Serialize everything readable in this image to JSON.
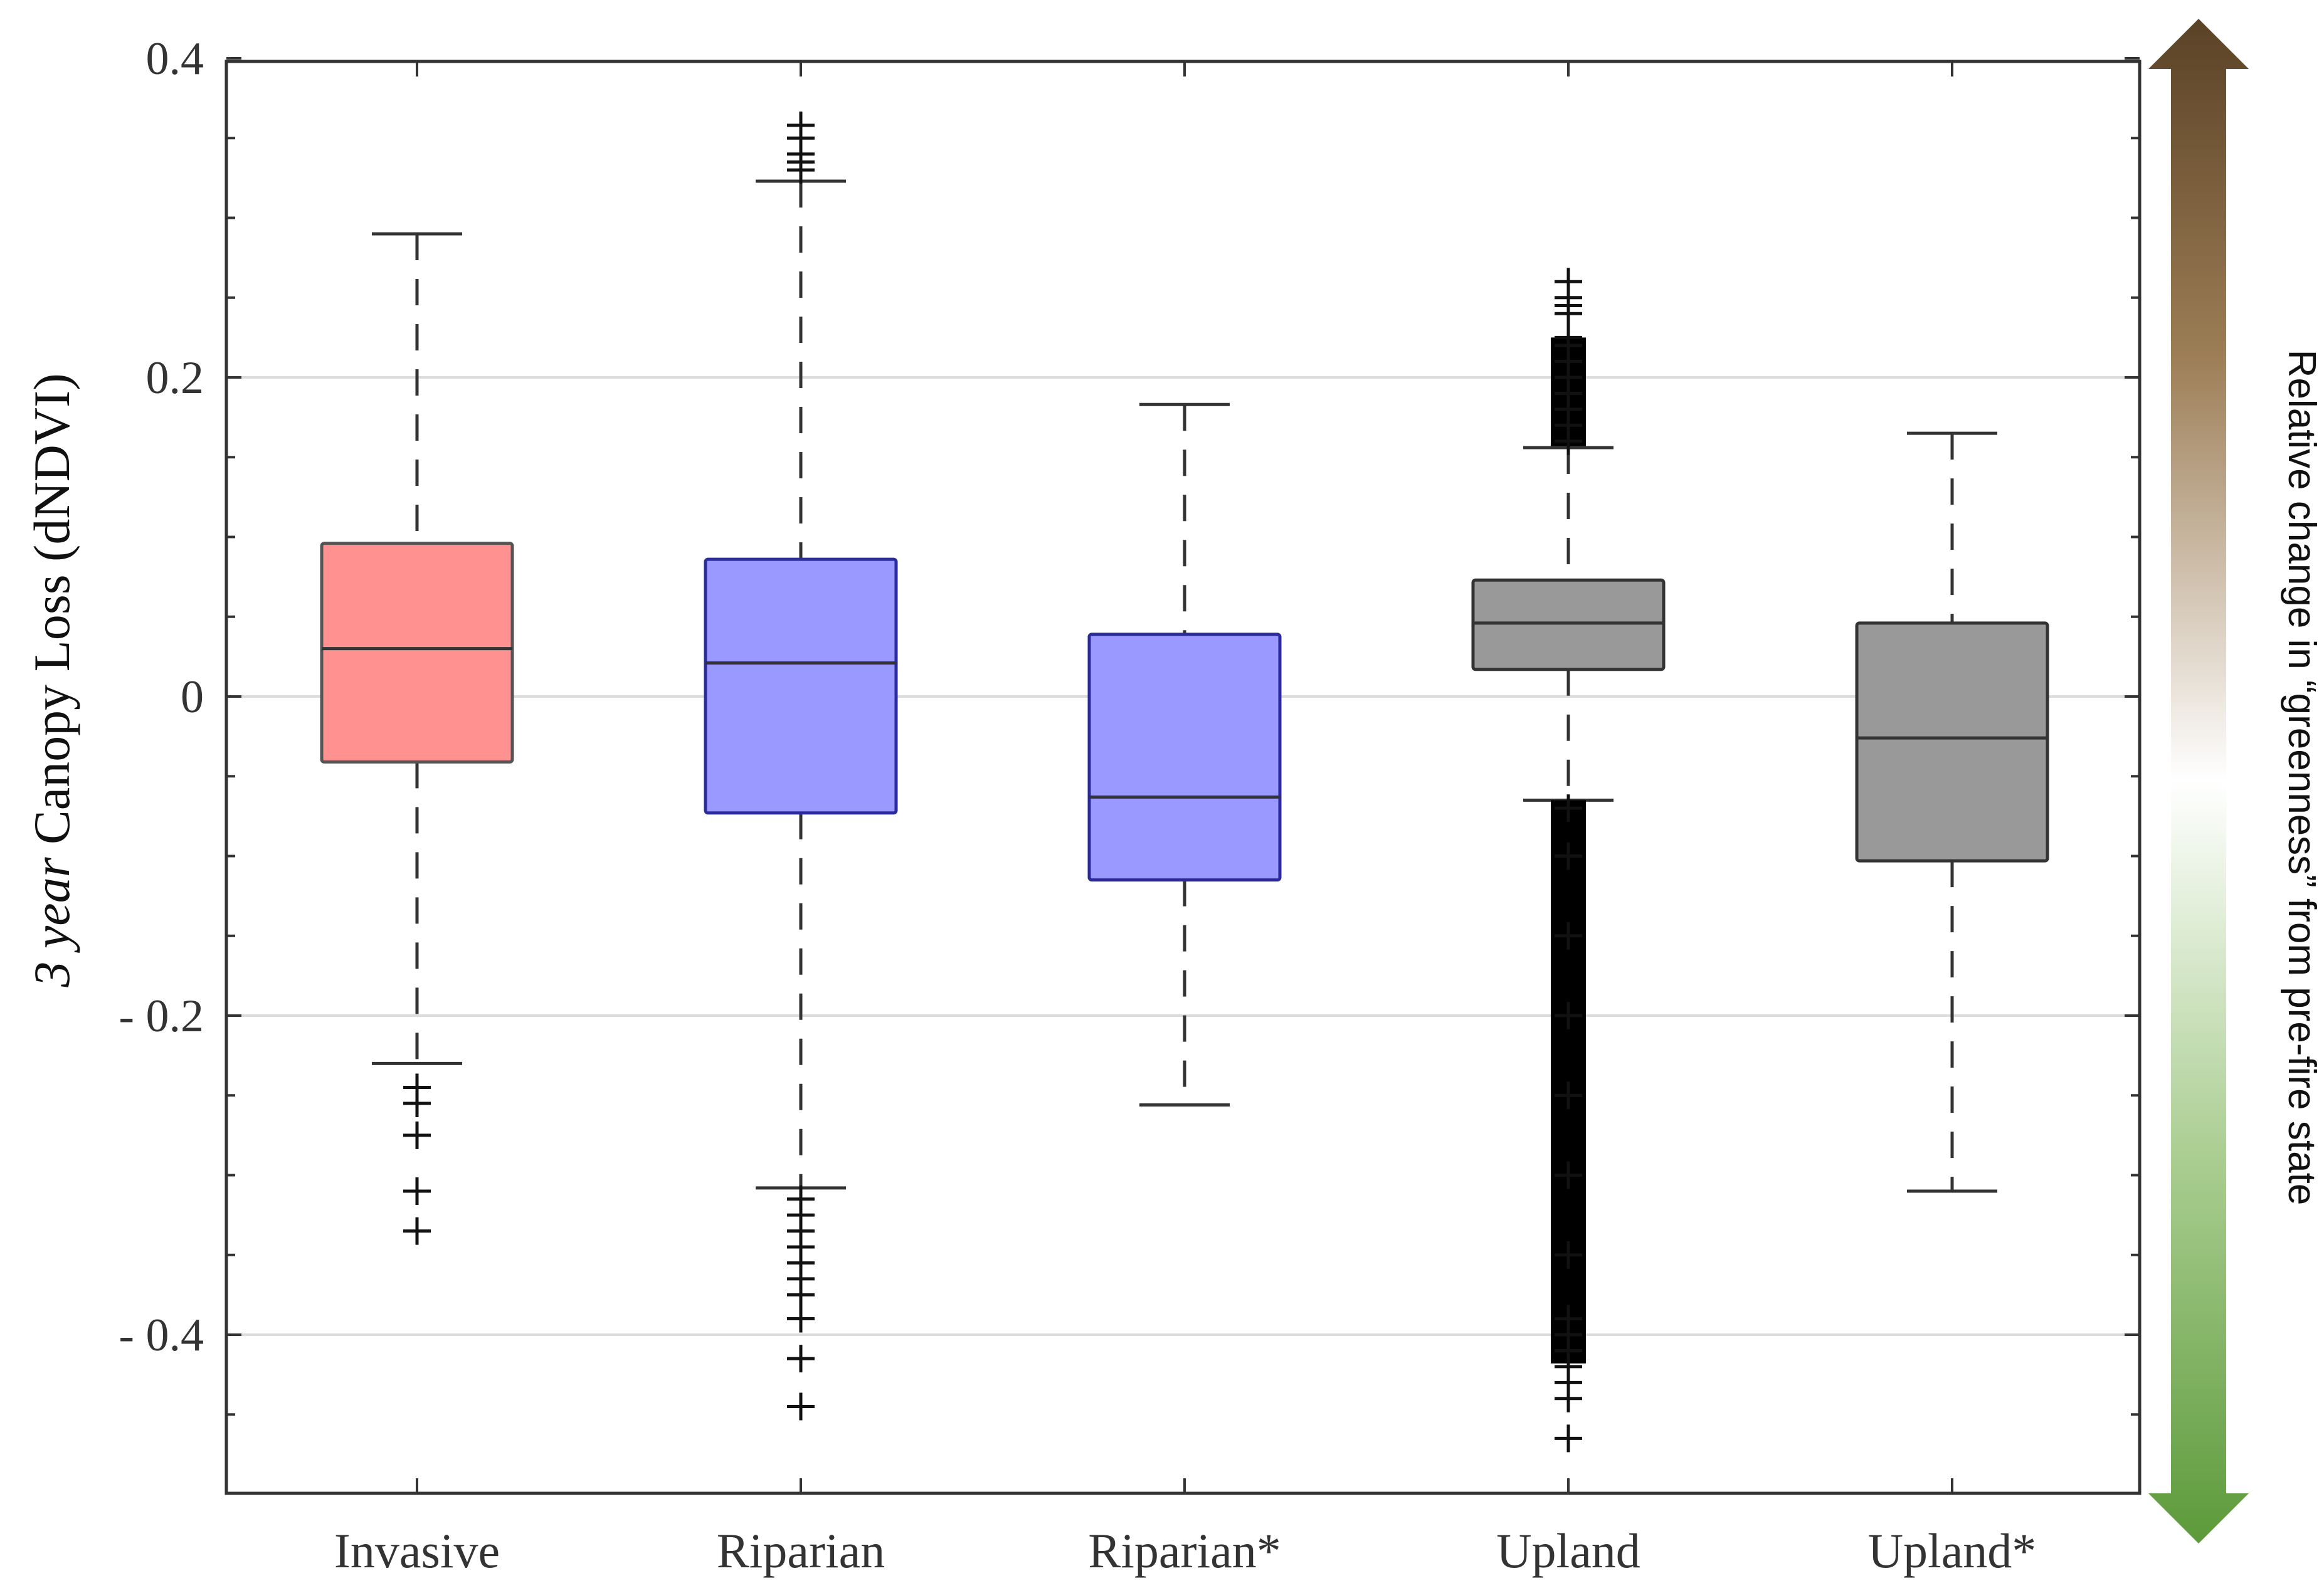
{
  "chart_data": {
    "type": "box",
    "ylabel_italic": "3 year",
    "ylabel_rest": " Canopy Loss (dNDVI)",
    "ylim": [
      -0.5,
      0.4
    ],
    "yticks": [
      0.4,
      0.2,
      0,
      -0.2,
      -0.4
    ],
    "ytick_labels": [
      "0.4",
      "0.2",
      "0",
      "- 0.2",
      "- 0.4"
    ],
    "grid": "horizontal",
    "side_arrow_label": "Relative change in “greenness” from pre-fire state",
    "side_arrow_colors": {
      "top": "#5a4226",
      "middle": "#ffffff",
      "bottom": "#5c9a3a"
    },
    "categories": [
      "Invasive",
      "Riparian",
      "Riparian*",
      "Upland",
      "Upland*"
    ],
    "boxes": [
      {
        "name": "Invasive",
        "color": "#ff9191",
        "edge": "#555555",
        "whisker_high": 0.29,
        "q3": 0.096,
        "median": 0.03,
        "q1": -0.041,
        "whisker_low": -0.23,
        "outliers": [
          -0.245,
          -0.255,
          -0.275,
          -0.31,
          -0.335
        ]
      },
      {
        "name": "Riparian",
        "color": "#9999ff",
        "edge": "#2b2b9c",
        "whisker_high": 0.323,
        "q3": 0.086,
        "median": 0.021,
        "q1": -0.073,
        "whisker_low": -0.308,
        "outliers": [
          0.33,
          0.335,
          0.34,
          0.35,
          0.358,
          -0.315,
          -0.325,
          -0.335,
          -0.345,
          -0.355,
          -0.365,
          -0.375,
          -0.39,
          -0.415,
          -0.445
        ]
      },
      {
        "name": "Riparian*",
        "color": "#9999ff",
        "edge": "#2b2b9c",
        "whisker_high": 0.183,
        "q3": 0.039,
        "median": -0.063,
        "q1": -0.115,
        "whisker_low": -0.256,
        "outliers": []
      },
      {
        "name": "Upland",
        "color": "#999999",
        "edge": "#333333",
        "whisker_high": 0.156,
        "q3": 0.073,
        "median": 0.046,
        "q1": 0.017,
        "whisker_low": -0.065,
        "outliers": [
          0.16,
          0.17,
          0.18,
          0.19,
          0.2,
          0.21,
          0.22,
          0.225,
          0.24,
          0.245,
          0.25,
          0.26,
          -0.07,
          -0.1,
          -0.15,
          -0.2,
          -0.25,
          -0.3,
          -0.35,
          -0.39,
          -0.4,
          -0.41,
          -0.42,
          -0.43,
          -0.44,
          -0.465
        ],
        "outlier_bands": [
          [
            0.157,
            0.225
          ],
          [
            -0.418,
            -0.065
          ]
        ]
      },
      {
        "name": "Upland*",
        "color": "#999999",
        "edge": "#333333",
        "whisker_high": 0.165,
        "q3": 0.046,
        "median": -0.026,
        "q1": -0.103,
        "whisker_low": -0.31,
        "outliers": []
      }
    ]
  }
}
